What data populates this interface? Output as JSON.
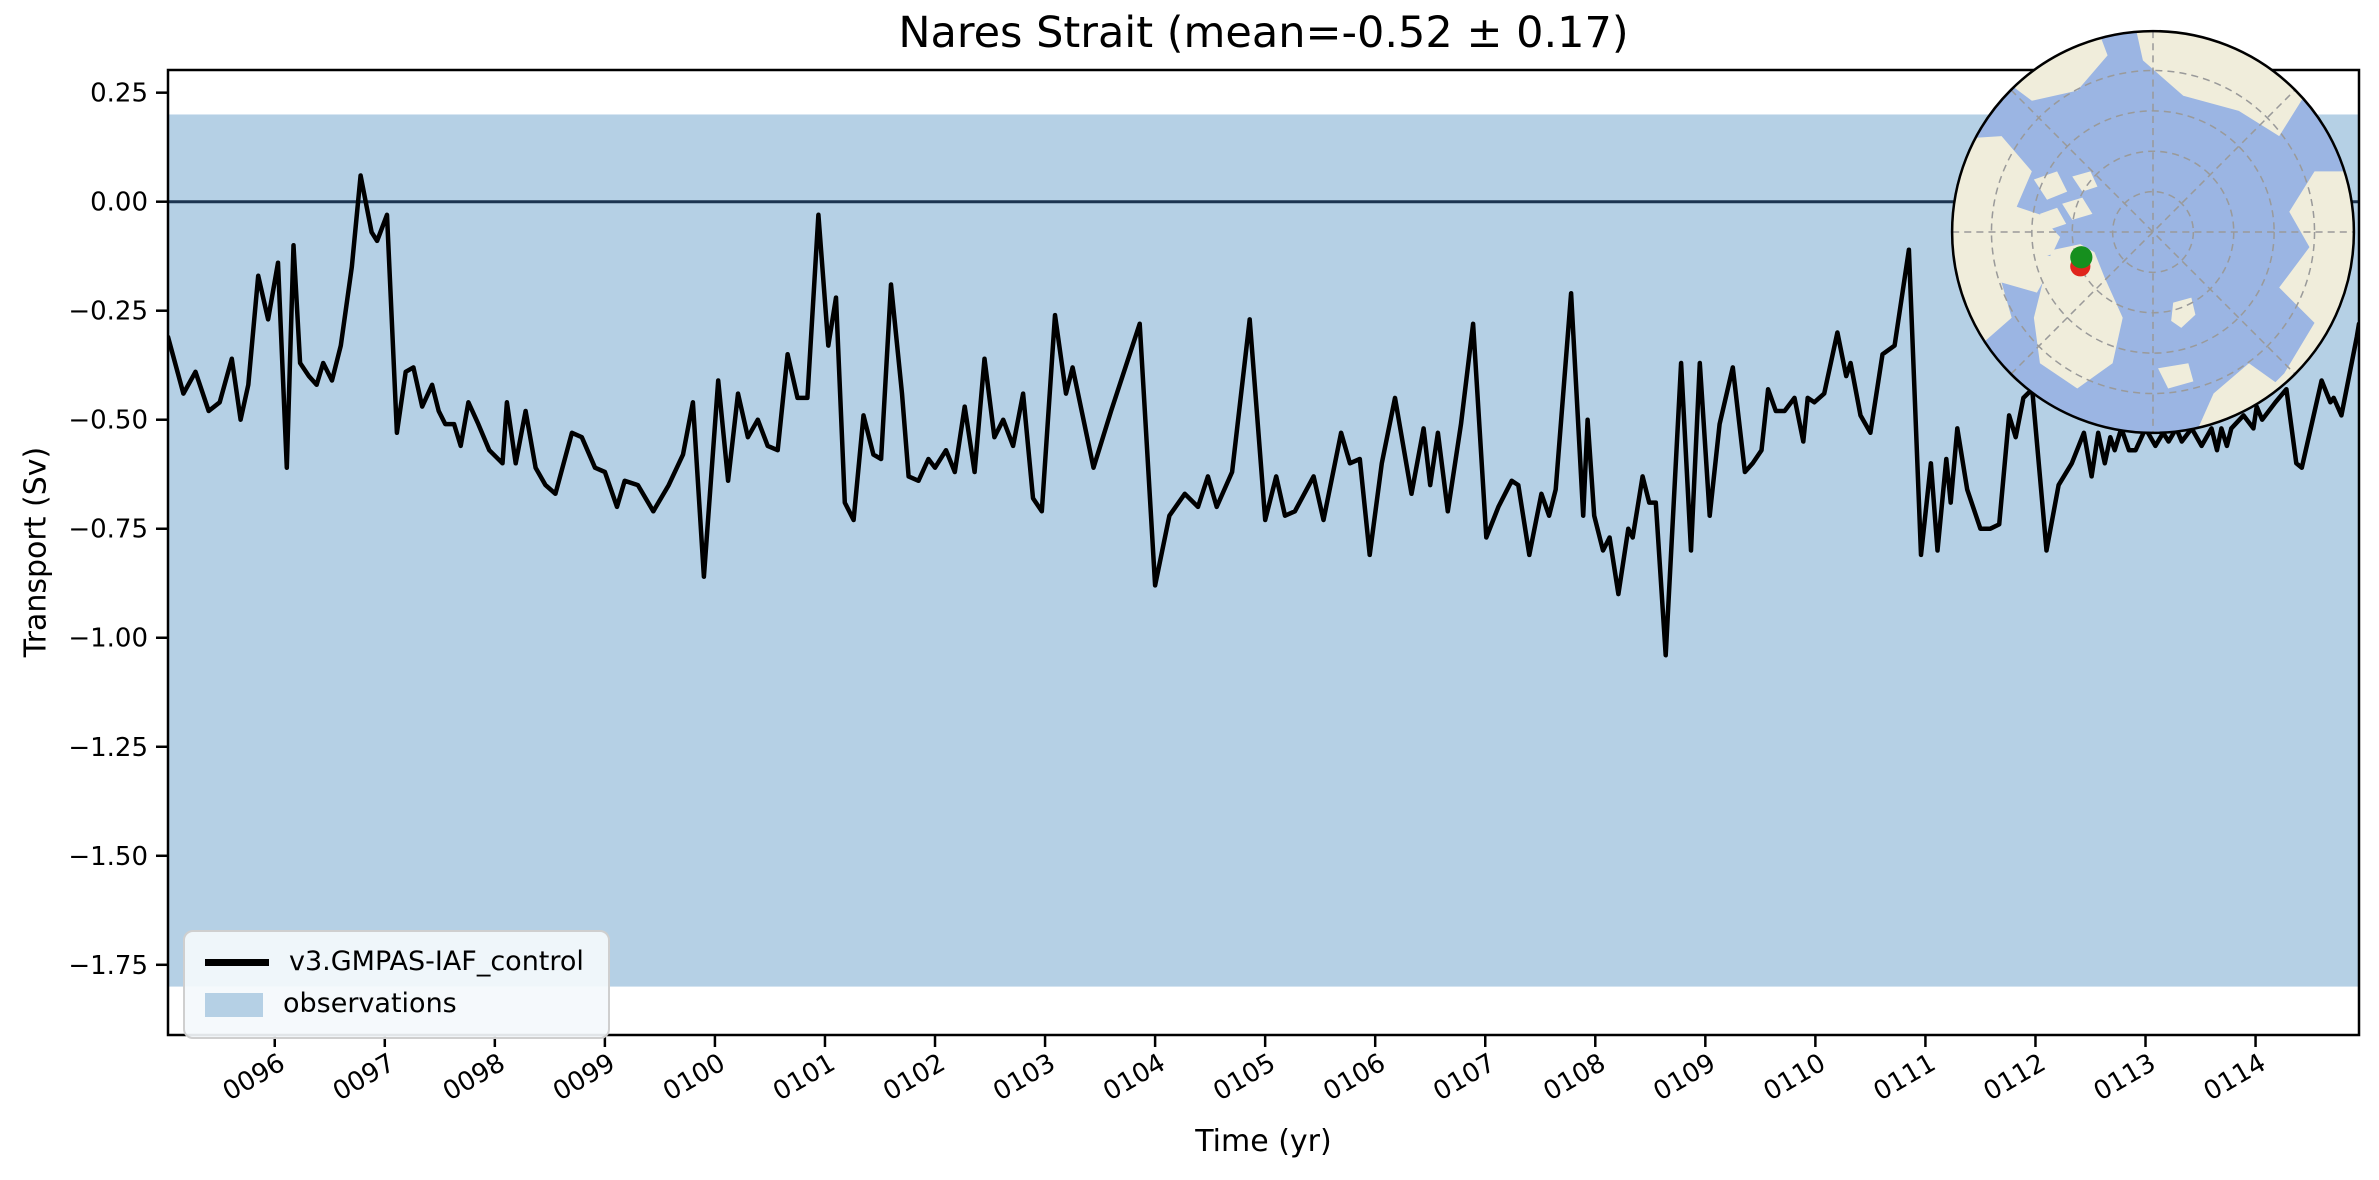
{
  "chart_data": {
    "type": "line",
    "title": "Nares Strait (mean=-0.52 ± 0.17)",
    "xlabel": "Time (yr)",
    "ylabel": "Transport (Sv)",
    "xlim": [
      95.03,
      114.94
    ],
    "ylim": [
      -1.911,
      0.302
    ],
    "grid": false,
    "legend_position": "lower left",
    "xticks": {
      "values": [
        96,
        97,
        98,
        99,
        100,
        101,
        102,
        103,
        104,
        105,
        106,
        107,
        108,
        109,
        110,
        111,
        112,
        113,
        114
      ],
      "labels": [
        "0096",
        "0097",
        "0098",
        "0099",
        "0100",
        "0101",
        "0102",
        "0103",
        "0104",
        "0105",
        "0106",
        "0107",
        "0108",
        "0109",
        "0110",
        "0111",
        "0112",
        "0113",
        "0114"
      ],
      "rotation": -30
    },
    "yticks": {
      "values": [
        0.25,
        0.0,
        -0.25,
        -0.5,
        -0.75,
        -1.0,
        -1.25,
        -1.5,
        -1.75
      ],
      "labels": [
        "0.25",
        "0.00",
        "−0.25",
        "−0.50",
        "−0.75",
        "−1.00",
        "−1.25",
        "−1.50",
        "−1.75"
      ]
    },
    "zero_line": {
      "y": 0.0,
      "color": "#1c3450"
    },
    "band": {
      "name": "observations",
      "color": "#b5d0e5",
      "ymin": -1.8,
      "ymax": 0.2
    },
    "series": [
      {
        "name": "v3.GMPAS-IAF_control",
        "color": "#000000",
        "line_width": 4.5,
        "points": [
          [
            95.03,
            -0.31
          ],
          [
            95.17,
            -0.44
          ],
          [
            95.28,
            -0.39
          ],
          [
            95.4,
            -0.48
          ],
          [
            95.5,
            -0.46
          ],
          [
            95.61,
            -0.36
          ],
          [
            95.69,
            -0.5
          ],
          [
            95.76,
            -0.42
          ],
          [
            95.85,
            -0.17
          ],
          [
            95.94,
            -0.27
          ],
          [
            96.03,
            -0.14
          ],
          [
            96.11,
            -0.61
          ],
          [
            96.17,
            -0.1
          ],
          [
            96.23,
            -0.37
          ],
          [
            96.31,
            -0.4
          ],
          [
            96.38,
            -0.42
          ],
          [
            96.44,
            -0.37
          ],
          [
            96.52,
            -0.41
          ],
          [
            96.6,
            -0.33
          ],
          [
            96.7,
            -0.15
          ],
          [
            96.78,
            0.06
          ],
          [
            96.88,
            -0.07
          ],
          [
            96.93,
            -0.09
          ],
          [
            97.02,
            -0.03
          ],
          [
            97.11,
            -0.53
          ],
          [
            97.19,
            -0.39
          ],
          [
            97.26,
            -0.38
          ],
          [
            97.34,
            -0.47
          ],
          [
            97.43,
            -0.42
          ],
          [
            97.49,
            -0.48
          ],
          [
            97.55,
            -0.51
          ],
          [
            97.63,
            -0.51
          ],
          [
            97.69,
            -0.56
          ],
          [
            97.76,
            -0.46
          ],
          [
            97.85,
            -0.51
          ],
          [
            97.95,
            -0.57
          ],
          [
            98.07,
            -0.6
          ],
          [
            98.11,
            -0.46
          ],
          [
            98.19,
            -0.6
          ],
          [
            98.28,
            -0.48
          ],
          [
            98.37,
            -0.61
          ],
          [
            98.46,
            -0.65
          ],
          [
            98.55,
            -0.67
          ],
          [
            98.7,
            -0.53
          ],
          [
            98.79,
            -0.54
          ],
          [
            98.91,
            -0.61
          ],
          [
            99.0,
            -0.62
          ],
          [
            99.11,
            -0.7
          ],
          [
            99.18,
            -0.64
          ],
          [
            99.3,
            -0.65
          ],
          [
            99.44,
            -0.71
          ],
          [
            99.58,
            -0.65
          ],
          [
            99.71,
            -0.58
          ],
          [
            99.8,
            -0.46
          ],
          [
            99.9,
            -0.86
          ],
          [
            100.03,
            -0.41
          ],
          [
            100.12,
            -0.64
          ],
          [
            100.21,
            -0.44
          ],
          [
            100.3,
            -0.54
          ],
          [
            100.39,
            -0.5
          ],
          [
            100.48,
            -0.56
          ],
          [
            100.57,
            -0.57
          ],
          [
            100.66,
            -0.35
          ],
          [
            100.75,
            -0.45
          ],
          [
            100.84,
            -0.45
          ],
          [
            100.94,
            -0.03
          ],
          [
            101.03,
            -0.33
          ],
          [
            101.1,
            -0.22
          ],
          [
            101.18,
            -0.69
          ],
          [
            101.26,
            -0.73
          ],
          [
            101.35,
            -0.49
          ],
          [
            101.44,
            -0.58
          ],
          [
            101.51,
            -0.59
          ],
          [
            101.6,
            -0.19
          ],
          [
            101.7,
            -0.44
          ],
          [
            101.76,
            -0.63
          ],
          [
            101.85,
            -0.64
          ],
          [
            101.94,
            -0.59
          ],
          [
            102.0,
            -0.61
          ],
          [
            102.1,
            -0.57
          ],
          [
            102.18,
            -0.62
          ],
          [
            102.27,
            -0.47
          ],
          [
            102.36,
            -0.62
          ],
          [
            102.45,
            -0.36
          ],
          [
            102.54,
            -0.54
          ],
          [
            102.62,
            -0.5
          ],
          [
            102.71,
            -0.56
          ],
          [
            102.8,
            -0.44
          ],
          [
            102.89,
            -0.68
          ],
          [
            102.97,
            -0.71
          ],
          [
            103.09,
            -0.26
          ],
          [
            103.19,
            -0.44
          ],
          [
            103.25,
            -0.38
          ],
          [
            103.44,
            -0.61
          ],
          [
            103.6,
            -0.48
          ],
          [
            103.86,
            -0.28
          ],
          [
            104.0,
            -0.88
          ],
          [
            104.13,
            -0.72
          ],
          [
            104.27,
            -0.67
          ],
          [
            104.39,
            -0.7
          ],
          [
            104.48,
            -0.63
          ],
          [
            104.56,
            -0.7
          ],
          [
            104.7,
            -0.62
          ],
          [
            104.86,
            -0.27
          ],
          [
            105.0,
            -0.73
          ],
          [
            105.1,
            -0.63
          ],
          [
            105.18,
            -0.72
          ],
          [
            105.27,
            -0.71
          ],
          [
            105.44,
            -0.63
          ],
          [
            105.53,
            -0.73
          ],
          [
            105.69,
            -0.53
          ],
          [
            105.77,
            -0.6
          ],
          [
            105.86,
            -0.59
          ],
          [
            105.95,
            -0.81
          ],
          [
            106.06,
            -0.6
          ],
          [
            106.18,
            -0.45
          ],
          [
            106.33,
            -0.67
          ],
          [
            106.44,
            -0.52
          ],
          [
            106.5,
            -0.65
          ],
          [
            106.57,
            -0.53
          ],
          [
            106.66,
            -0.71
          ],
          [
            106.78,
            -0.51
          ],
          [
            106.89,
            -0.28
          ],
          [
            107.01,
            -0.77
          ],
          [
            107.12,
            -0.7
          ],
          [
            107.24,
            -0.64
          ],
          [
            107.3,
            -0.65
          ],
          [
            107.4,
            -0.81
          ],
          [
            107.51,
            -0.67
          ],
          [
            107.58,
            -0.72
          ],
          [
            107.64,
            -0.66
          ],
          [
            107.78,
            -0.21
          ],
          [
            107.89,
            -0.72
          ],
          [
            107.93,
            -0.5
          ],
          [
            107.99,
            -0.72
          ],
          [
            108.07,
            -0.8
          ],
          [
            108.13,
            -0.77
          ],
          [
            108.21,
            -0.9
          ],
          [
            108.3,
            -0.75
          ],
          [
            108.34,
            -0.77
          ],
          [
            108.43,
            -0.63
          ],
          [
            108.49,
            -0.69
          ],
          [
            108.55,
            -0.69
          ],
          [
            108.64,
            -1.04
          ],
          [
            108.78,
            -0.37
          ],
          [
            108.87,
            -0.8
          ],
          [
            108.95,
            -0.37
          ],
          [
            109.04,
            -0.72
          ],
          [
            109.13,
            -0.51
          ],
          [
            109.25,
            -0.38
          ],
          [
            109.36,
            -0.62
          ],
          [
            109.43,
            -0.6
          ],
          [
            109.51,
            -0.57
          ],
          [
            109.57,
            -0.43
          ],
          [
            109.64,
            -0.48
          ],
          [
            109.72,
            -0.48
          ],
          [
            109.81,
            -0.45
          ],
          [
            109.89,
            -0.55
          ],
          [
            109.93,
            -0.45
          ],
          [
            109.99,
            -0.46
          ],
          [
            110.08,
            -0.44
          ],
          [
            110.2,
            -0.3
          ],
          [
            110.28,
            -0.4
          ],
          [
            110.32,
            -0.37
          ],
          [
            110.41,
            -0.49
          ],
          [
            110.5,
            -0.53
          ],
          [
            110.61,
            -0.35
          ],
          [
            110.72,
            -0.33
          ],
          [
            110.85,
            -0.11
          ],
          [
            110.96,
            -0.81
          ],
          [
            111.05,
            -0.6
          ],
          [
            111.11,
            -0.8
          ],
          [
            111.19,
            -0.59
          ],
          [
            111.23,
            -0.69
          ],
          [
            111.29,
            -0.52
          ],
          [
            111.38,
            -0.66
          ],
          [
            111.5,
            -0.75
          ],
          [
            111.59,
            -0.75
          ],
          [
            111.67,
            -0.74
          ],
          [
            111.76,
            -0.49
          ],
          [
            111.82,
            -0.54
          ],
          [
            111.89,
            -0.45
          ],
          [
            111.97,
            -0.43
          ],
          [
            112.1,
            -0.8
          ],
          [
            112.21,
            -0.65
          ],
          [
            112.33,
            -0.6
          ],
          [
            112.44,
            -0.53
          ],
          [
            112.51,
            -0.63
          ],
          [
            112.57,
            -0.53
          ],
          [
            112.63,
            -0.6
          ],
          [
            112.68,
            -0.54
          ],
          [
            112.72,
            -0.57
          ],
          [
            112.78,
            -0.52
          ],
          [
            112.85,
            -0.57
          ],
          [
            112.91,
            -0.57
          ],
          [
            113.0,
            -0.52
          ],
          [
            113.09,
            -0.56
          ],
          [
            113.16,
            -0.53
          ],
          [
            113.21,
            -0.55
          ],
          [
            113.28,
            -0.52
          ],
          [
            113.33,
            -0.55
          ],
          [
            113.42,
            -0.52
          ],
          [
            113.51,
            -0.56
          ],
          [
            113.6,
            -0.52
          ],
          [
            113.65,
            -0.57
          ],
          [
            113.69,
            -0.52
          ],
          [
            113.74,
            -0.56
          ],
          [
            113.78,
            -0.52
          ],
          [
            113.89,
            -0.49
          ],
          [
            113.98,
            -0.52
          ],
          [
            114.01,
            -0.47
          ],
          [
            114.06,
            -0.5
          ],
          [
            114.18,
            -0.46
          ],
          [
            114.28,
            -0.43
          ],
          [
            114.37,
            -0.6
          ],
          [
            114.42,
            -0.61
          ],
          [
            114.6,
            -0.41
          ],
          [
            114.68,
            -0.46
          ],
          [
            114.71,
            -0.45
          ],
          [
            114.78,
            -0.49
          ],
          [
            114.92,
            -0.31
          ],
          [
            114.94,
            -0.28
          ]
        ]
      }
    ],
    "inset_map": {
      "projection": "north-polar",
      "ocean_color": "#9bb5e3",
      "land_color": "#f0eddb",
      "graticule_color": "#9a9a9a",
      "markers": [
        {
          "name": "transect-marker-green",
          "color": "#168f1e"
        },
        {
          "name": "transect-marker-red",
          "color": "#e0251c"
        }
      ]
    }
  }
}
